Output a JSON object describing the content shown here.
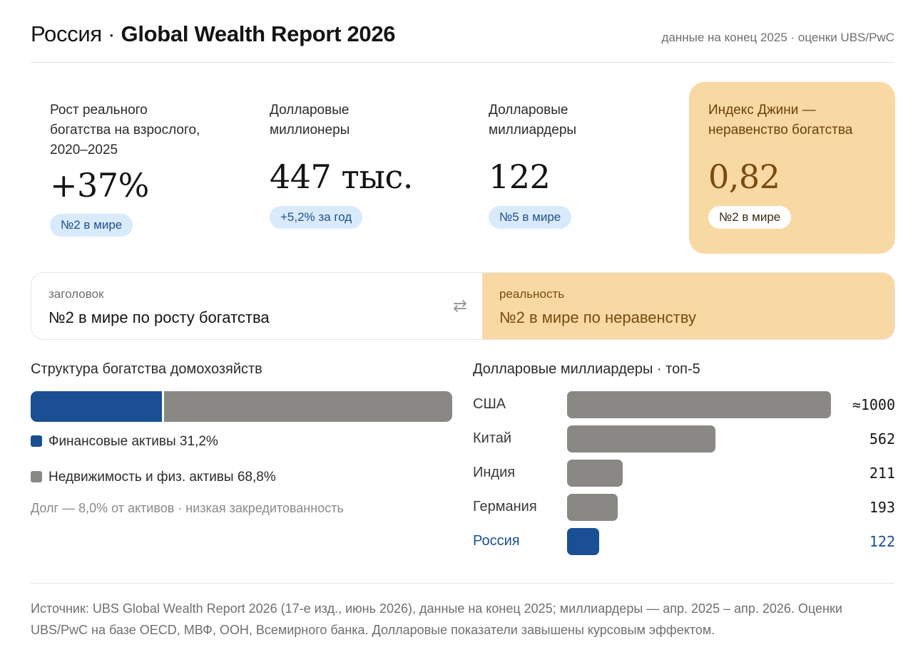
{
  "header": {
    "title_light": "Россия · ",
    "title_strong": "Global Wealth Report 2026",
    "subtitle": "данные на конец 2025 · оценки UBS/PwC"
  },
  "cards": [
    {
      "label_lines": [
        "Рост реального",
        "богатства на взрослого,",
        "2020–2025"
      ],
      "value": "+37%",
      "badge": "№2 в мире"
    },
    {
      "label_lines": [
        "Долларовые",
        "миллионеры"
      ],
      "value": "447 тыс.",
      "badge": "+5,2% за год"
    },
    {
      "label_lines": [
        "Долларовые",
        "миллиардеры"
      ],
      "value": "122",
      "badge": "№5 в мире"
    },
    {
      "label_lines": [
        "Индекс Джини —",
        "неравенство богатства"
      ],
      "value": "0,82",
      "badge": "№2 в мире"
    }
  ],
  "compare": {
    "left_caption": "заголовок",
    "left_text": "№2 в мире по росту богатства",
    "swap_icon": "swap-arrows-icon",
    "right_caption": "реальность",
    "right_text": "№2 в мире по неравенству"
  },
  "structure": {
    "title": "Структура богатства домохозяйств",
    "legend": [
      {
        "label": "Финансовые активы 31,2%",
        "color": "#1a4f94"
      },
      {
        "label": "Недвижимость и физ. активы 68,8%",
        "color": "#8a8884"
      }
    ],
    "note": "Долг — 8,0% от активов · низкая закредитованность"
  },
  "billionaires": {
    "title": "Долларовые миллиардеры · топ-5",
    "display": [
      "≈1000",
      "562",
      "211",
      "193",
      "122"
    ]
  },
  "chart_data": [
    {
      "type": "bar",
      "title": "Структура богатства домохозяйств",
      "categories": [
        "Финансовые активы",
        "Недвижимость и физ. активы"
      ],
      "values": [
        31.2,
        68.8
      ],
      "unit": "%",
      "stacked": true,
      "colors": [
        "#1a4f94",
        "#8a8884"
      ]
    },
    {
      "type": "bar",
      "title": "Долларовые миллиардеры · топ-5",
      "orientation": "horizontal",
      "categories": [
        "США",
        "Китай",
        "Индия",
        "Германия",
        "Россия"
      ],
      "values": [
        1000,
        562,
        211,
        193,
        122
      ],
      "highlight": "Россия",
      "colors": {
        "default": "#8a8884",
        "highlight": "#1a4f94"
      }
    }
  ],
  "footer": {
    "lines": [
      "Источник: UBS Global Wealth Report 2026 (17-е изд., июнь 2026), данные на конец 2025; миллиардеры — апр. 2025 – апр. 2026. Оценки",
      "UBS/PwC на базе OECD, МВФ, ООН, Всемирного банка. Долларовые показатели завышены курсовым эффектом."
    ]
  }
}
